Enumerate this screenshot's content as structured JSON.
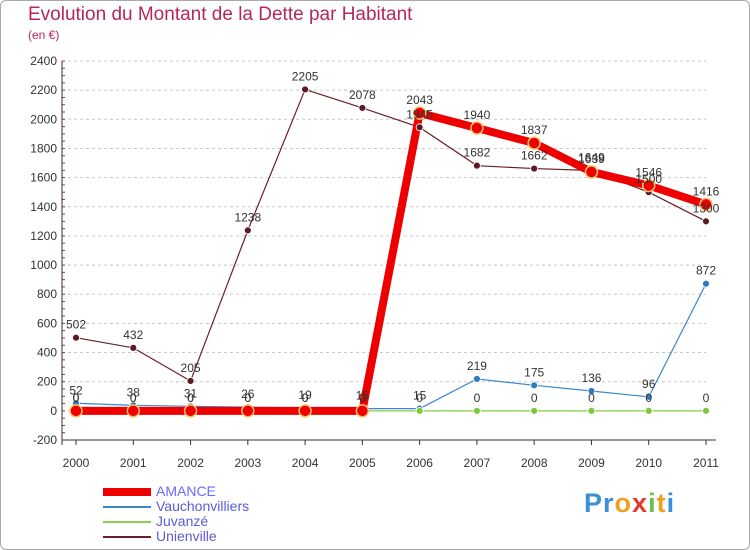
{
  "header": {
    "title": "Evolution du Montant de la Dette par Habitant",
    "unit": "(en €)"
  },
  "brand": {
    "letters": [
      "P",
      "r",
      "o",
      "x",
      "i",
      "t",
      "i"
    ],
    "colors": [
      "#3a8fd6",
      "#3a8fd6",
      "#f0a020",
      "#e23a2a",
      "#6cc04a",
      "#f0a020",
      "#3a8fd6"
    ]
  },
  "colors": {
    "title": "#b5265c",
    "axis": "#333333",
    "grid": "#c8c8c8"
  },
  "chart_data": {
    "type": "line",
    "title": "Evolution du Montant de la Dette par Habitant",
    "ylabel": "(en €)",
    "xlabel": "",
    "ylim": [
      -200,
      2400
    ],
    "yticks": [
      -200,
      0,
      200,
      400,
      600,
      800,
      1000,
      1200,
      1400,
      1600,
      1800,
      2000,
      2200,
      2400
    ],
    "categories": [
      "2000",
      "2001",
      "2002",
      "2003",
      "2004",
      "2005",
      "2006",
      "2007",
      "2008",
      "2009",
      "2010",
      "2011"
    ],
    "series": [
      {
        "name": "AMANCE",
        "color": "#ee0000",
        "values": [
          0,
          0,
          0,
          0,
          0,
          0,
          2043,
          1940,
          1837,
          1639,
          1546,
          1416
        ]
      },
      {
        "name": "Vauchonvilliers",
        "color": "#3d87c8",
        "values": [
          52,
          38,
          31,
          26,
          19,
          15,
          15,
          219,
          175,
          136,
          96,
          872
        ]
      },
      {
        "name": "Juvanzé",
        "color": "#86d046",
        "values": [
          0,
          0,
          0,
          0,
          0,
          0,
          0,
          0,
          0,
          0,
          0,
          0
        ]
      },
      {
        "name": "Unienville",
        "color": "#6a1e26",
        "values": [
          502,
          432,
          205,
          1238,
          2205,
          2078,
          1945,
          1682,
          1662,
          1649,
          1500,
          1300
        ]
      }
    ]
  }
}
